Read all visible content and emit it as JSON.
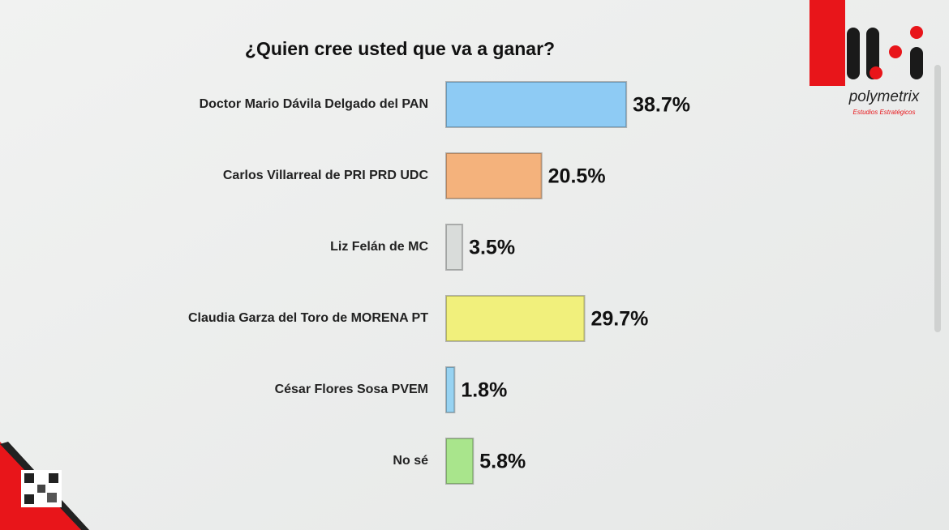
{
  "chart_data": {
    "type": "bar",
    "orientation": "horizontal",
    "title": "¿Quien cree usted que va a ganar?",
    "categories": [
      "Doctor Mario Dávila Delgado del PAN",
      "Carlos Villarreal de PRI PRD UDC",
      "Liz Felán de MC",
      "Claudia Garza del Toro de MORENA PT",
      "César Flores Sosa PVEM",
      "No sé"
    ],
    "values": [
      38.7,
      20.5,
      3.5,
      29.7,
      1.8,
      5.8
    ],
    "value_labels": [
      "38.7%",
      "20.5%",
      "3.5%",
      "29.7%",
      "1.8%",
      "5.8%"
    ],
    "colors": [
      "#8ecbf4",
      "#f4b27c",
      "#d9dcda",
      "#f1f07c",
      "#97d3f2",
      "#a9e58c"
    ]
  },
  "logo": {
    "name": "polymetrix",
    "tagline": "Estudios Estratégicos"
  }
}
